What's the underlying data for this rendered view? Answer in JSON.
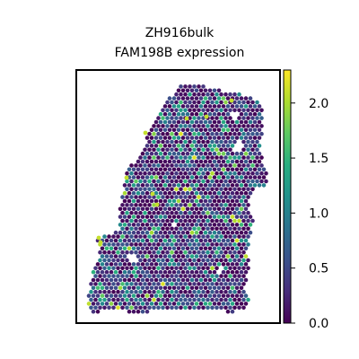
{
  "chart_data": {
    "type": "scatter",
    "subtype": "spatial-hexbin",
    "title_lines": [
      "ZH916bulk",
      "FAM198B expression"
    ],
    "xlabel": "",
    "ylabel": "",
    "grid": false,
    "colormap": "viridis",
    "color_range": [
      0.0,
      2.3
    ],
    "colorbar": {
      "ticks": [
        0.0,
        0.5,
        1.0,
        1.5,
        2.0
      ],
      "tick_labels": [
        "0.0",
        "0.5",
        "1.0",
        "1.5",
        "2.0"
      ],
      "placement": "right"
    },
    "value_distribution": "mostly near 0.0-0.6, scattered spots near 1.0-1.6, rare bright spots near 2.0-2.2"
  }
}
